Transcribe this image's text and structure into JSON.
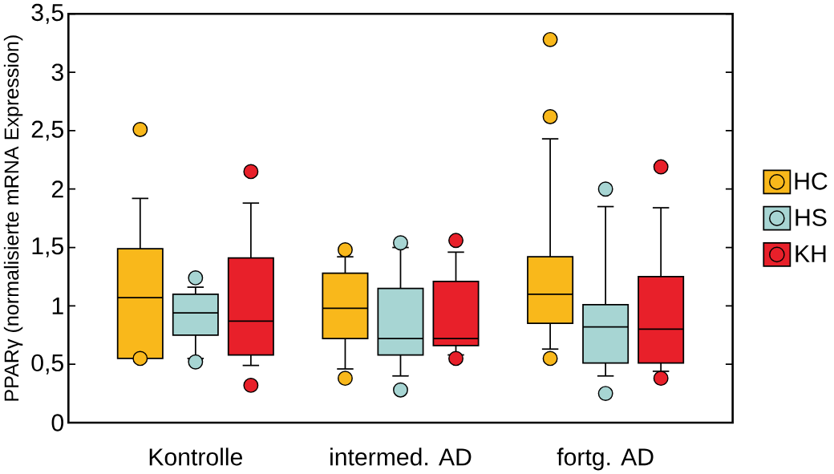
{
  "chart_data": {
    "type": "box",
    "ylabel": "PPARγ (normalisierte mRNA Expression)",
    "categories": [
      "Kontrolle",
      "intermed. AD",
      "fortg. AD"
    ],
    "ylim": [
      0,
      3.5
    ],
    "yticks": [
      0,
      {
        "value": 0.5,
        "label": "0,5"
      },
      1,
      {
        "value": 1.5,
        "label": "1,5"
      },
      2,
      {
        "value": 2.5,
        "label": "2,5"
      },
      3,
      {
        "value": 3.5,
        "label": "3,5"
      }
    ],
    "grid": false,
    "legend": "right",
    "marker": "circle",
    "series": [
      {
        "name": "HC",
        "color": "#f9b81b",
        "boxes": [
          {
            "low": 0.55,
            "q1": 0.55,
            "median": 1.07,
            "q3": 1.49,
            "high": 1.92,
            "outliers": [
              2.51,
              0.55
            ]
          },
          {
            "low": 0.46,
            "q1": 0.72,
            "median": 0.98,
            "q3": 1.28,
            "high": 1.42,
            "outliers": [
              1.48,
              0.38
            ]
          },
          {
            "low": 0.63,
            "q1": 0.85,
            "median": 1.1,
            "q3": 1.42,
            "high": 2.43,
            "outliers": [
              2.62,
              3.28,
              0.55
            ]
          }
        ]
      },
      {
        "name": "HS",
        "color": "#a7d5d3",
        "boxes": [
          {
            "low": 0.55,
            "q1": 0.75,
            "median": 0.94,
            "q3": 1.1,
            "high": 1.16,
            "outliers": [
              1.24,
              0.52
            ]
          },
          {
            "low": 0.4,
            "q1": 0.58,
            "median": 0.72,
            "q3": 1.15,
            "high": 1.5,
            "outliers": [
              1.54,
              0.28
            ]
          },
          {
            "low": 0.4,
            "q1": 0.51,
            "median": 0.82,
            "q3": 1.01,
            "high": 1.85,
            "outliers": [
              2.0,
              0.25
            ]
          }
        ]
      },
      {
        "name": "KH",
        "color": "#e8202a",
        "boxes": [
          {
            "low": 0.49,
            "q1": 0.58,
            "median": 0.87,
            "q3": 1.41,
            "high": 1.88,
            "outliers": [
              2.15,
              0.32
            ]
          },
          {
            "low": 0.58,
            "q1": 0.66,
            "median": 0.72,
            "q3": 1.21,
            "high": 1.46,
            "outliers": [
              1.56,
              0.55
            ]
          },
          {
            "low": 0.44,
            "q1": 0.51,
            "median": 0.8,
            "q3": 1.25,
            "high": 1.84,
            "outliers": [
              2.19,
              0.38
            ]
          }
        ]
      }
    ]
  }
}
